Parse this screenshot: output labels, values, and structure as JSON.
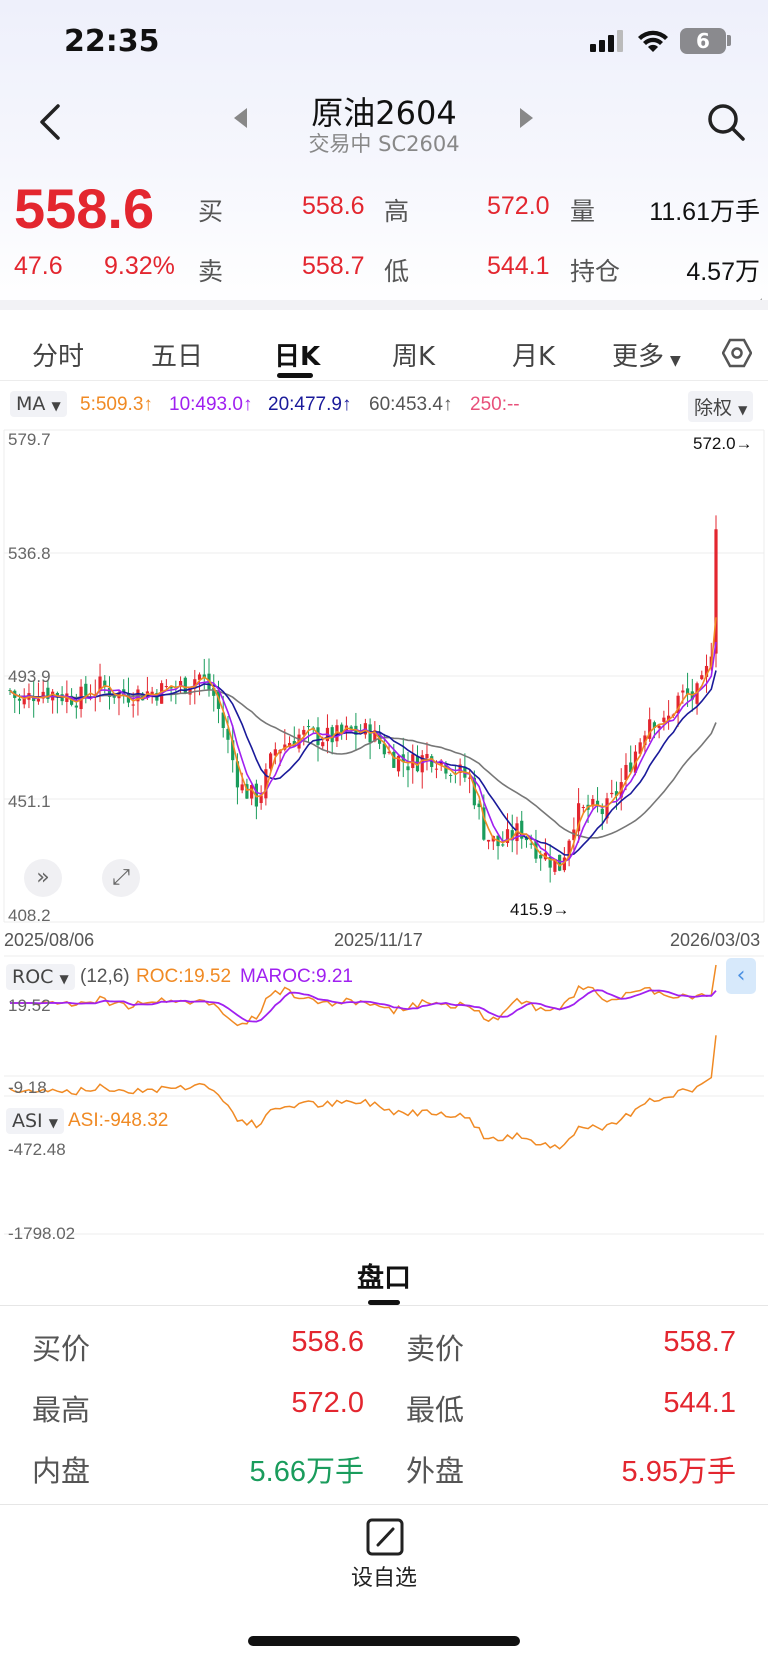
{
  "status": {
    "time": "22:35",
    "battery": "6"
  },
  "header": {
    "title": "原油2604",
    "subtitle": "交易中 SC2604"
  },
  "quote": {
    "price": "558.6",
    "change": "47.6",
    "change_pct": "9.32%",
    "buy_label": "买",
    "buy": "558.6",
    "sell_label": "卖",
    "sell": "558.7",
    "high_label": "高",
    "high": "572.0",
    "low_label": "低",
    "low": "544.1",
    "vol_label": "量",
    "vol": "11.61万手",
    "oi_label": "持仓",
    "oi": "4.57万"
  },
  "tabs": [
    "分时",
    "五日",
    "日K",
    "周K",
    "月K",
    "更多"
  ],
  "indicators": {
    "ma_chip": "MA",
    "ma5": "5:509.3↑",
    "ma10": "10:493.0↑",
    "ma20": "20:477.9↑",
    "ma60": "60:453.4↑",
    "ma250": "250:--",
    "adjust": "除权",
    "roc_chip": "ROC",
    "roc_params": "(12,6)",
    "roc": "ROC:19.52",
    "maroc": "MAROC:9.21",
    "asi_chip": "ASI",
    "asi": "ASI:-948.32"
  },
  "colors": {
    "up": "#e3262f",
    "down": "#1a9c5c",
    "ma5": "#f08a24",
    "ma10": "#a020f0",
    "ma20": "#1a1a9a",
    "ma60": "#777777"
  },
  "chart_data": [
    {
      "type": "candlestick",
      "y_ticks": [
        "579.7",
        "536.8",
        "493.9",
        "451.1",
        "408.2"
      ],
      "ylim": [
        408.2,
        579.7
      ],
      "x_labels": [
        "2025/08/06",
        "2025/11/17",
        "2026/03/03"
      ],
      "max_label": "572.0→",
      "min_label": "415.9→",
      "ma_legend": [
        "5:509.3↑",
        "10:493.0↑",
        "20:477.9↑",
        "60:453.4↑",
        "250:--"
      ]
    },
    {
      "type": "line",
      "name": "ROC",
      "y_ticks": [
        "19.52",
        "-9.18"
      ],
      "series": [
        {
          "name": "ROC",
          "last": 19.52
        },
        {
          "name": "MAROC",
          "last": 9.21
        }
      ]
    },
    {
      "type": "line",
      "name": "ASI",
      "y_ticks": [
        "-472.48",
        "-1798.02"
      ],
      "series": [
        {
          "name": "ASI",
          "last": -948.32
        }
      ]
    }
  ],
  "panel": {
    "title": "盘口",
    "rows": [
      {
        "l1": "买价",
        "v1": "558.6",
        "l2": "卖价",
        "v2": "558.7"
      },
      {
        "l1": "最高",
        "v1": "572.0",
        "l2": "最低",
        "v2": "544.1"
      },
      {
        "l1": "内盘",
        "v1": "5.66万手",
        "l2": "外盘",
        "v2": "5.95万手"
      }
    ]
  },
  "footer": {
    "fav_label": "设自选"
  }
}
